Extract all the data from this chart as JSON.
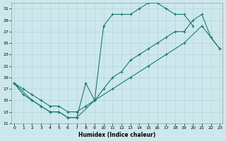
{
  "xlabel": "Humidex (Indice chaleur)",
  "bg_color": "#cde8ed",
  "grid_color": "#b5d4da",
  "line_color": "#1a7a6e",
  "xlim": [
    -0.3,
    23.3
  ],
  "ylim": [
    11,
    32
  ],
  "xticks": [
    0,
    1,
    2,
    3,
    4,
    5,
    6,
    7,
    8,
    9,
    10,
    11,
    12,
    13,
    14,
    15,
    16,
    17,
    18,
    19,
    20,
    21,
    22,
    23
  ],
  "yticks": [
    11,
    13,
    15,
    17,
    19,
    21,
    23,
    25,
    27,
    29,
    31
  ],
  "curve1_x": [
    0,
    1,
    2,
    3,
    4,
    5,
    6,
    7,
    8,
    9,
    10,
    11,
    12,
    13,
    14,
    15,
    16,
    17,
    18,
    19,
    20
  ],
  "curve1_y": [
    18,
    16,
    15,
    14,
    13,
    13,
    12,
    12,
    18,
    15,
    28,
    30,
    30,
    30,
    31,
    32,
    32,
    31,
    30,
    30,
    28
  ],
  "curve2_x": [
    0,
    1,
    2,
    3,
    4,
    5,
    6,
    7,
    8,
    9,
    10,
    11,
    12,
    13,
    14,
    15,
    16,
    17,
    18,
    19,
    20,
    21,
    22,
    23
  ],
  "curve2_y": [
    18,
    17,
    16,
    15,
    14,
    14,
    13,
    13,
    14,
    15,
    17,
    19,
    20,
    22,
    23,
    24,
    25,
    26,
    27,
    27,
    29,
    30,
    26,
    24
  ],
  "curve3_x": [
    0,
    2,
    3,
    4,
    5,
    6,
    7,
    9,
    11,
    13,
    15,
    17,
    19,
    21,
    23
  ],
  "curve3_y": [
    18,
    15,
    14,
    13,
    13,
    12,
    12,
    15,
    17,
    19,
    21,
    23,
    25,
    28,
    24
  ]
}
